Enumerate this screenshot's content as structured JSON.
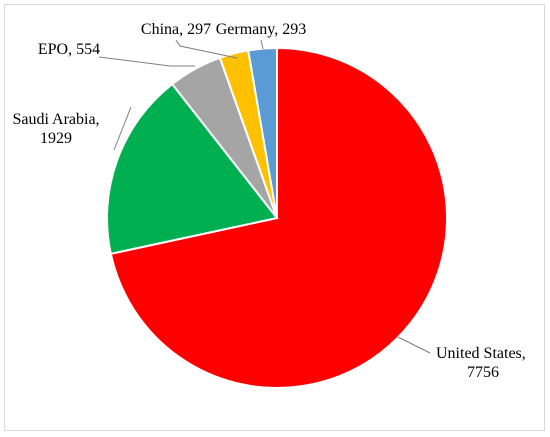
{
  "chart_data": {
    "type": "pie",
    "title": "",
    "legend": "none",
    "start_angle_deg": 0,
    "direction": "clockwise",
    "slices": [
      {
        "name": "United States",
        "value": 7756,
        "color": "#ff0000",
        "label_lines": [
          "United States,",
          "7756"
        ]
      },
      {
        "name": "Saudi Arabia",
        "value": 1929,
        "color": "#00b050",
        "label_lines": [
          "Saudi Arabia,",
          "1929"
        ]
      },
      {
        "name": "EPO",
        "value": 554,
        "color": "#a5a5a5",
        "label_lines": [
          "EPO, 554"
        ]
      },
      {
        "name": "China",
        "value": 297,
        "color": "#ffc000",
        "label_lines": [
          "China, 297"
        ]
      },
      {
        "name": "Germany",
        "value": 293,
        "color": "#5b9bd5",
        "label_lines": [
          "Germany, 293"
        ]
      }
    ]
  }
}
